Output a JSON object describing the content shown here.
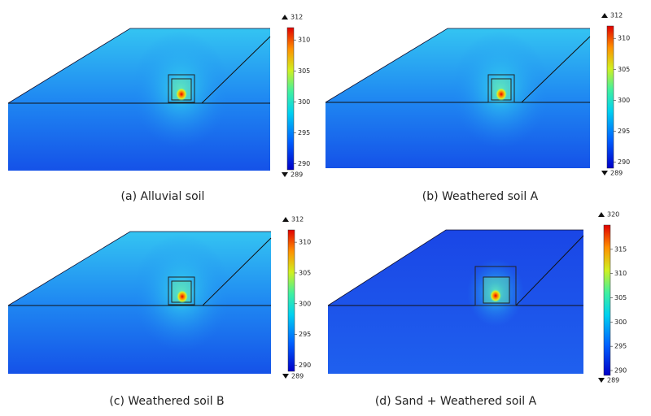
{
  "panels": [
    {
      "caption": "(a) Alluvial soil",
      "colorbar": {
        "max": 312,
        "min": 289,
        "ticks": [
          290,
          295,
          300,
          305,
          310
        ]
      }
    },
    {
      "caption": "(b) Weathered soil A",
      "colorbar": {
        "max": 312,
        "min": 289,
        "ticks": [
          290,
          295,
          300,
          305,
          310
        ]
      }
    },
    {
      "caption": "(c) Weathered soil B",
      "colorbar": {
        "max": 312,
        "min": 289,
        "ticks": [
          290,
          295,
          300,
          305,
          310
        ]
      }
    },
    {
      "caption": "(d) Sand + Weathered soil A",
      "colorbar": {
        "max": 320,
        "min": 289,
        "ticks": [
          290,
          295,
          300,
          305,
          310,
          315
        ]
      }
    }
  ]
}
